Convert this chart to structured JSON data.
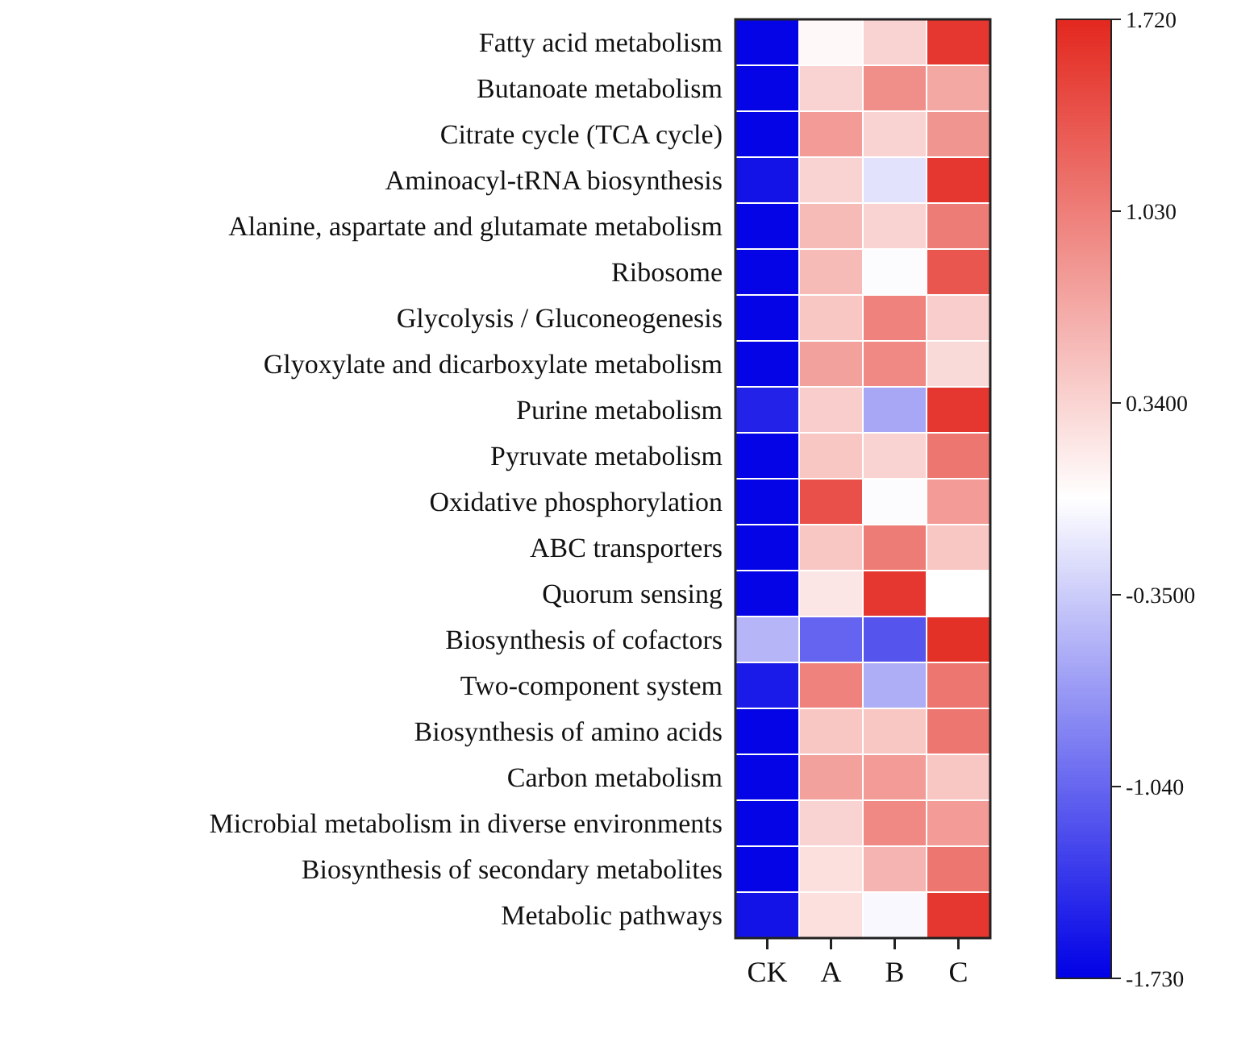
{
  "chart_data": {
    "type": "heatmap",
    "categories": [
      "CK",
      "A",
      "B",
      "C"
    ],
    "y_categories": [
      "Fatty acid metabolism",
      "Butanoate metabolism",
      "Citrate cycle (TCA cycle)",
      "Aminoacyl-tRNA biosynthesis",
      "Alanine, aspartate and glutamate metabolism",
      "Ribosome",
      "Glycolysis / Gluconeogenesis",
      "Glyoxylate and dicarboxylate metabolism",
      "Purine metabolism",
      "Pyruvate metabolism",
      "Oxidative phosphorylation",
      "ABC transporters",
      "Quorum sensing",
      "Biosynthesis of cofactors",
      "Two-component system",
      "Biosynthesis of amino acids",
      "Carbon metabolism",
      "Microbial metabolism in diverse environments",
      "Biosynthesis of secondary metabolites",
      "Metabolic pathways"
    ],
    "cells": [
      [
        -1.7,
        0.05,
        0.35,
        1.6
      ],
      [
        -1.7,
        0.35,
        0.9,
        0.7
      ],
      [
        -1.7,
        0.8,
        0.35,
        0.85
      ],
      [
        -1.6,
        0.35,
        -0.2,
        1.6
      ],
      [
        -1.7,
        0.55,
        0.35,
        1.05
      ],
      [
        -1.7,
        0.55,
        -0.02,
        1.35
      ],
      [
        -1.7,
        0.45,
        1.0,
        0.4
      ],
      [
        -1.7,
        0.75,
        0.95,
        0.3
      ],
      [
        -1.5,
        0.4,
        -0.6,
        1.6
      ],
      [
        -1.7,
        0.45,
        0.35,
        1.1
      ],
      [
        -1.7,
        1.4,
        -0.02,
        0.8
      ],
      [
        -1.7,
        0.45,
        1.05,
        0.45
      ],
      [
        -1.7,
        0.2,
        1.6,
        0.0
      ],
      [
        -0.5,
        -1.05,
        -1.15,
        1.65
      ],
      [
        -1.55,
        1.0,
        -0.55,
        1.1
      ],
      [
        -1.7,
        0.45,
        0.45,
        1.1
      ],
      [
        -1.7,
        0.75,
        0.8,
        0.45
      ],
      [
        -1.7,
        0.35,
        0.95,
        0.8
      ],
      [
        -1.7,
        0.25,
        0.6,
        1.1
      ],
      [
        -1.6,
        0.25,
        -0.05,
        1.6
      ]
    ],
    "clim": [
      -1.73,
      1.72
    ],
    "cticks": [
      {
        "value": -1.73,
        "label": "-1.730"
      },
      {
        "value": -1.04,
        "label": "-1.040"
      },
      {
        "value": -0.35,
        "label": "-0.3500"
      },
      {
        "value": 0.34,
        "label": "0.3400"
      },
      {
        "value": 1.03,
        "label": "1.030"
      },
      {
        "value": 1.72,
        "label": "1.720"
      }
    ]
  }
}
